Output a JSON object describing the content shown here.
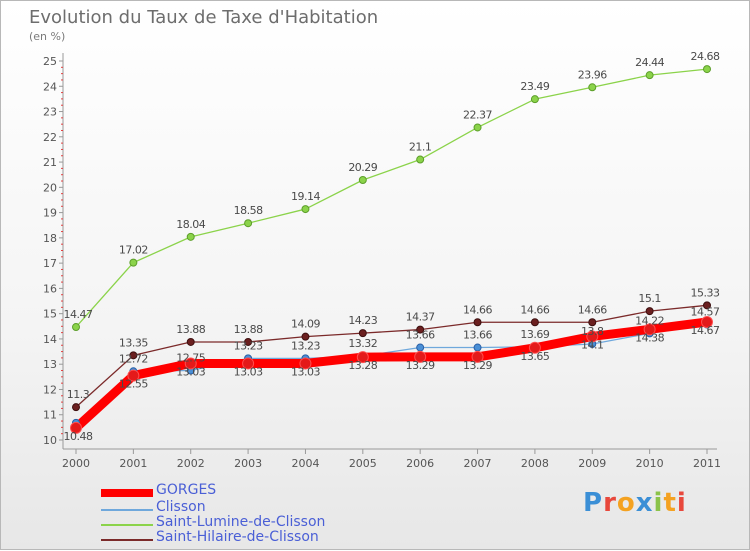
{
  "chart_data": {
    "type": "line",
    "title": "Evolution du Taux de Taxe d'Habitation",
    "subtitle": "(en %)",
    "xlabel": "",
    "ylabel": "",
    "ylim": [
      10,
      25
    ],
    "grid": false,
    "legend_position": "bottom-left",
    "x": [
      "2000",
      "2001",
      "2002",
      "2003",
      "2004",
      "2005",
      "2006",
      "2007",
      "2008",
      "2009",
      "2010",
      "2011"
    ],
    "y_ticks": [
      "10",
      "11",
      "12",
      "13",
      "14",
      "15",
      "16",
      "17",
      "18",
      "19",
      "20",
      "21",
      "22",
      "23",
      "24",
      "25"
    ],
    "series": [
      {
        "name": "GORGES",
        "color": "#ff0000",
        "values": [
          10.48,
          12.55,
          13.03,
          13.03,
          13.03,
          13.28,
          13.29,
          13.29,
          13.65,
          14.1,
          14.38,
          14.67
        ],
        "labels": [
          "10.48",
          "12.55",
          "13.03",
          "13.03",
          "13.03",
          "13.28",
          "13.29",
          "13.29",
          "13.65",
          "14.1",
          "14.38",
          "14.67"
        ]
      },
      {
        "name": "Clisson",
        "color": "#6fa8dc",
        "values": [
          10.68,
          12.72,
          12.75,
          13.23,
          13.23,
          13.32,
          13.66,
          13.66,
          13.69,
          13.8,
          14.22,
          14.57
        ],
        "labels": [
          "",
          "12.72",
          "12.75",
          "13.23",
          "13.23",
          "13.32",
          "13.66",
          "13.66",
          "13.69",
          "13.8",
          "14.22",
          "14.57"
        ]
      },
      {
        "name": "Saint-Lumine-de-Clisson",
        "color": "#8bd34a",
        "values": [
          14.47,
          17.02,
          18.04,
          18.58,
          19.14,
          20.29,
          21.1,
          22.37,
          23.49,
          23.96,
          24.44,
          24.68
        ],
        "labels": [
          "14.47",
          "17.02",
          "18.04",
          "18.58",
          "19.14",
          "20.29",
          "21.1",
          "22.37",
          "23.49",
          "23.96",
          "24.44",
          "24.68"
        ]
      },
      {
        "name": "Saint-Hilaire-de-Clisson",
        "color": "#7b2a2a",
        "values": [
          11.3,
          13.35,
          13.88,
          13.88,
          14.09,
          14.23,
          14.37,
          14.66,
          14.66,
          14.66,
          15.1,
          15.33
        ],
        "labels": [
          "11.3",
          "13.35",
          "13.88",
          "13.88",
          "14.09",
          "14.23",
          "14.37",
          "14.66",
          "14.66",
          "14.66",
          "15.1",
          "15.33"
        ]
      }
    ]
  },
  "brand": {
    "letters": [
      "P",
      "r",
      "o",
      "x",
      "i",
      "t",
      "i"
    ],
    "colors": [
      "#3b8fd6",
      "#e8483c",
      "#f4a221",
      "#3b8fd6",
      "#8bc34a",
      "#f4a221",
      "#e8483c"
    ]
  }
}
